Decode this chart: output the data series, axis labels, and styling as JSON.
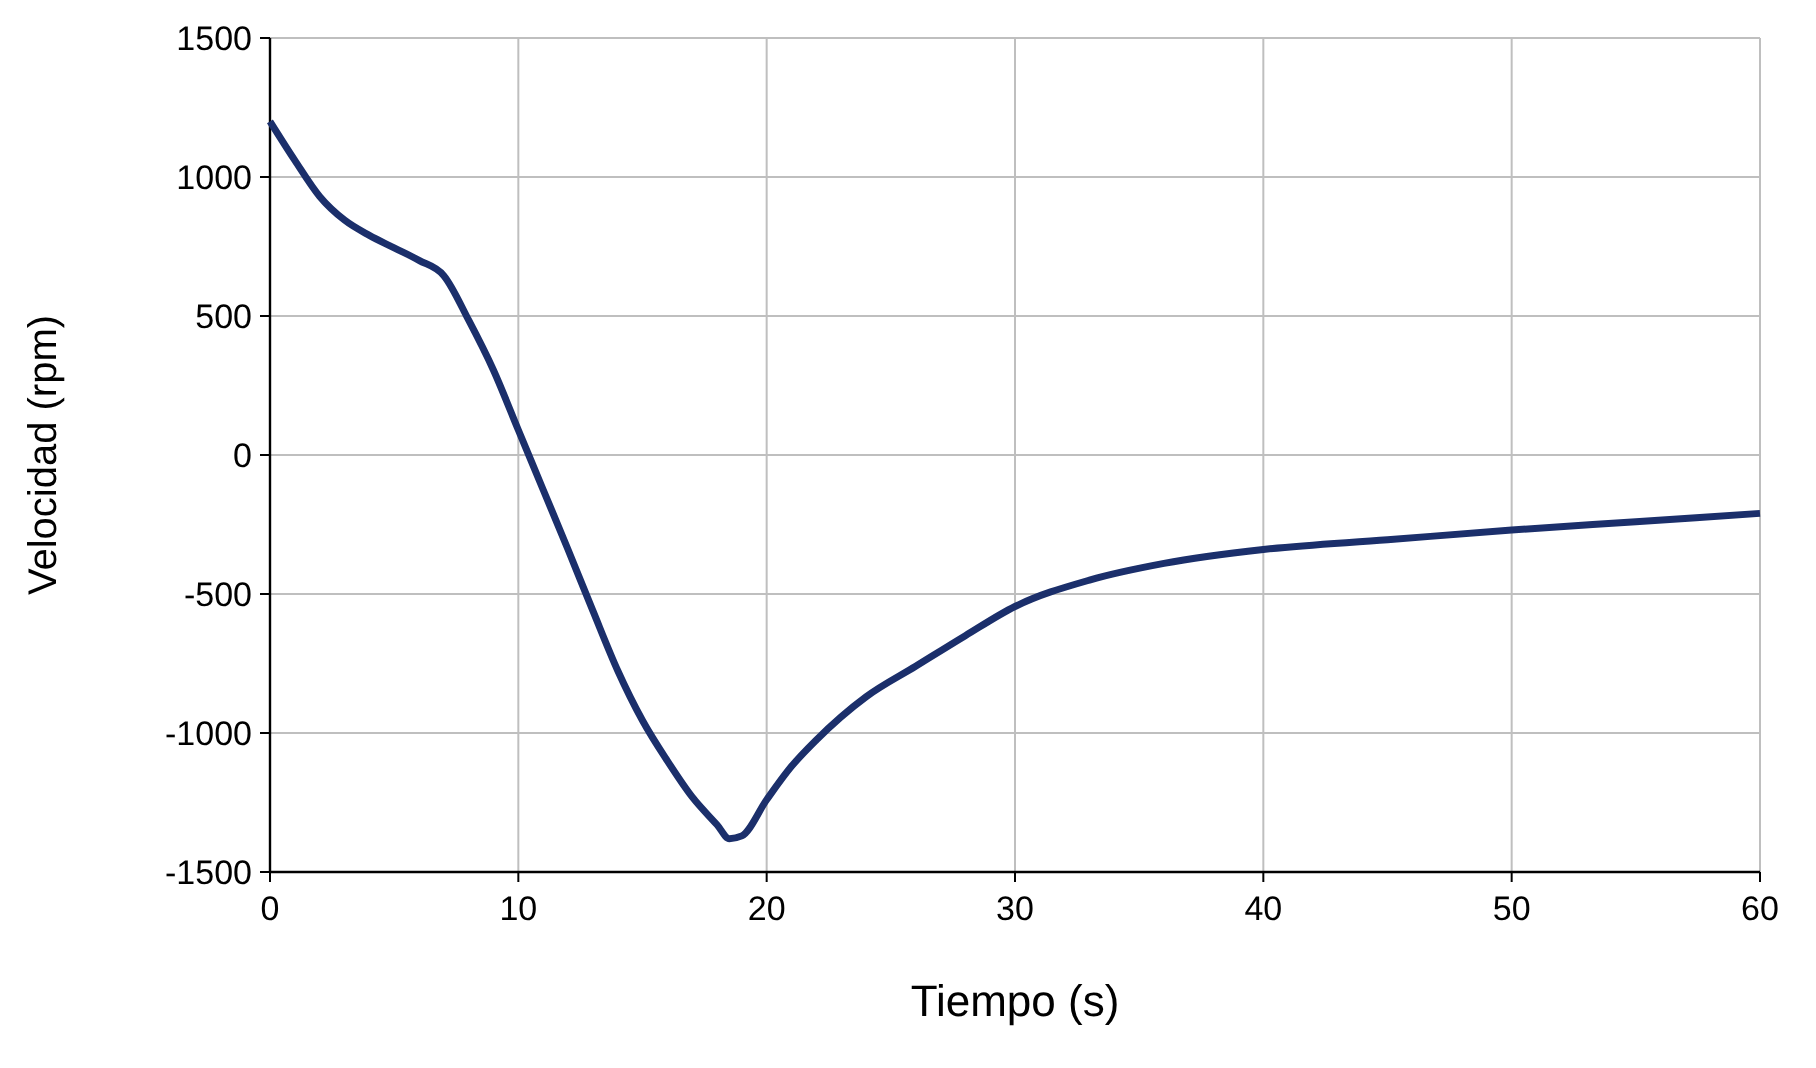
{
  "chart_data": {
    "type": "line",
    "xlabel": "Tiempo (s)",
    "ylabel": "Velocidad (rpm)",
    "xlim": [
      0,
      60
    ],
    "xticks": [
      0,
      10,
      20,
      30,
      40,
      50,
      60
    ],
    "ylim": [
      -1500,
      1500
    ],
    "yticks": [
      -1500,
      -1000,
      -500,
      0,
      500,
      1000,
      1500
    ],
    "grid": true,
    "marker": "none",
    "line_style": "solid",
    "series": [
      {
        "color": "#1b2f6b",
        "x": [
          0,
          1,
          2,
          3,
          4,
          5,
          6,
          7,
          8,
          9,
          10,
          11,
          12,
          13,
          14,
          15,
          16,
          17,
          18,
          18.5,
          19,
          20,
          21,
          22,
          24,
          26,
          28,
          30,
          33,
          36,
          40,
          45,
          50,
          55,
          60
        ],
        "values": [
          1200,
          1060,
          930,
          845,
          790,
          745,
          700,
          645,
          485,
          305,
          90,
          -125,
          -340,
          -560,
          -775,
          -955,
          -1100,
          -1230,
          -1330,
          -1380,
          -1370,
          -1240,
          -1120,
          -1025,
          -870,
          -760,
          -650,
          -545,
          -450,
          -390,
          -340,
          -305,
          -270,
          -240,
          -210
        ]
      }
    ]
  }
}
